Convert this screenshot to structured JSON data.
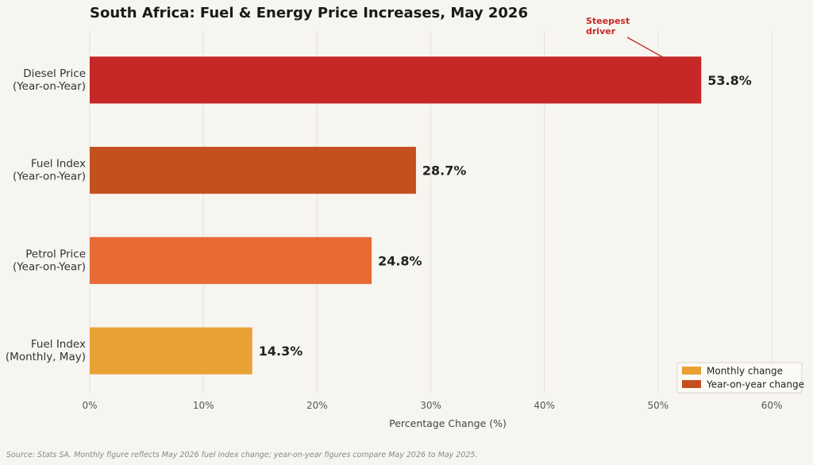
{
  "chart_data": {
    "type": "bar",
    "orientation": "horizontal",
    "title": "South Africa: Fuel & Energy Price Increases, May 2026",
    "xlabel": "Percentage Change (%)",
    "ylabel": "",
    "xlim": [
      0,
      63
    ],
    "xticks": [
      0,
      10,
      20,
      30,
      40,
      50,
      60
    ],
    "xtick_labels": [
      "0%",
      "10%",
      "20%",
      "30%",
      "40%",
      "50%",
      "60%"
    ],
    "grid": "vertical",
    "categories": [
      [
        "Diesel Price",
        "(Year-on-Year)"
      ],
      [
        "Fuel Index",
        "(Year-on-Year)"
      ],
      [
        "Petrol Price",
        "(Year-on-Year)"
      ],
      [
        "Fuel Index",
        "(Monthly, May)"
      ]
    ],
    "values": [
      53.8,
      28.7,
      24.8,
      14.3
    ],
    "value_labels": [
      "53.8%",
      "28.7%",
      "24.8%",
      "14.3%"
    ],
    "bar_colors": [
      "#c62828",
      "#c4501f",
      "#e86a35",
      "#e8a135"
    ],
    "legend": {
      "placement": "bottom-right",
      "entries": [
        {
          "label": "Monthly change",
          "color": "#e8a135"
        },
        {
          "label": "Year-on-year change",
          "color": "#c4501f"
        }
      ]
    },
    "annotation": {
      "lines": [
        "Steepest",
        "driver"
      ],
      "target_category_index": 0,
      "color": "#c62828"
    },
    "source": "Source: Stats SA. Monthly figure reflects May 2026 fuel index change; year-on-year figures compare May 2026 to May 2025."
  }
}
